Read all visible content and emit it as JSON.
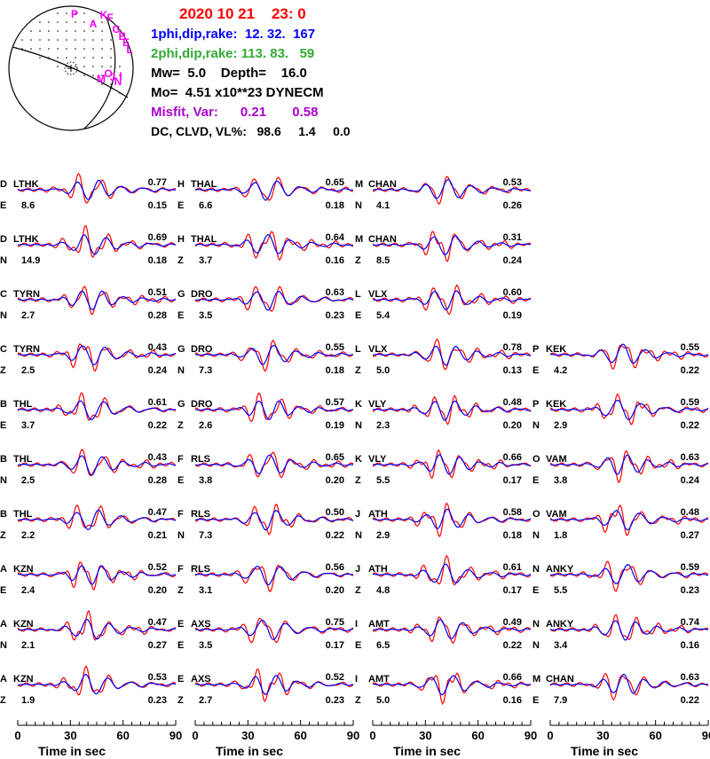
{
  "header": {
    "date": "2020 10 21    23: 0",
    "plane1": "1phi,dip,rake:  12. 32.  167",
    "plane2": "2phi,dip,rake: 113. 83.   59",
    "mw_depth": "Mw=  5.0    Depth=    16.0",
    "moment": "Mo=  4.51 x10**23 DYNECM",
    "misfit": "Misfit, Var:      0.21       0.58",
    "dc": "DC, CLVD, VL%:   98.6     1.4     0.0",
    "colors": {
      "date": "#ff0000",
      "plane1": "#0000ff",
      "plane2": "#33aa33",
      "misfit": "#aa00cc",
      "text": "#000000"
    }
  },
  "beachball": {
    "station_labels": [
      "P",
      "A",
      "K",
      "F",
      "G",
      "B",
      "E",
      "L",
      "J",
      "N",
      "O",
      "I",
      "M"
    ],
    "label_color": "#ff00ff"
  },
  "chart_data": {
    "type": "waveform_grid",
    "series_colors": {
      "observed": "#ff0000",
      "synthetic": "#0000ff"
    },
    "columns": [
      [
        {
          "letter": "D",
          "station": "LTHK",
          "comp": "E",
          "dist": "8.6",
          "cc": "0.77",
          "amp": "0.15"
        },
        {
          "letter": "D",
          "station": "LTHK",
          "comp": "N",
          "dist": "14.9",
          "cc": "0.69",
          "amp": "0.18"
        },
        {
          "letter": "C",
          "station": "TYRN",
          "comp": "N",
          "dist": "2.7",
          "cc": "0.51",
          "amp": "0.28"
        },
        {
          "letter": "C",
          "station": "TYRN",
          "comp": "Z",
          "dist": "2.5",
          "cc": "0.43",
          "amp": "0.24"
        },
        {
          "letter": "B",
          "station": "THL",
          "comp": "E",
          "dist": "3.7",
          "cc": "0.61",
          "amp": "0.22"
        },
        {
          "letter": "B",
          "station": "THL",
          "comp": "N",
          "dist": "2.5",
          "cc": "0.43",
          "amp": "0.28"
        },
        {
          "letter": "B",
          "station": "THL",
          "comp": "Z",
          "dist": "2.2",
          "cc": "0.47",
          "amp": "0.21"
        },
        {
          "letter": "A",
          "station": "KZN",
          "comp": "E",
          "dist": "2.4",
          "cc": "0.52",
          "amp": "0.20"
        },
        {
          "letter": "A",
          "station": "KZN",
          "comp": "N",
          "dist": "2.1",
          "cc": "0.47",
          "amp": "0.27"
        },
        {
          "letter": "A",
          "station": "KZN",
          "comp": "Z",
          "dist": "1.9",
          "cc": "0.53",
          "amp": "0.23"
        }
      ],
      [
        {
          "letter": "H",
          "station": "THAL",
          "comp": "E",
          "dist": "6.6",
          "cc": "0.65",
          "amp": "0.18"
        },
        {
          "letter": "H",
          "station": "THAL",
          "comp": "Z",
          "dist": "3.7",
          "cc": "0.64",
          "amp": "0.16"
        },
        {
          "letter": "G",
          "station": "DRO",
          "comp": "E",
          "dist": "3.5",
          "cc": "0.63",
          "amp": "0.23"
        },
        {
          "letter": "G",
          "station": "DRO",
          "comp": "N",
          "dist": "7.3",
          "cc": "0.55",
          "amp": "0.18"
        },
        {
          "letter": "G",
          "station": "DRO",
          "comp": "Z",
          "dist": "2.6",
          "cc": "0.57",
          "amp": "0.19"
        },
        {
          "letter": "F",
          "station": "RLS",
          "comp": "E",
          "dist": "3.8",
          "cc": "0.65",
          "amp": "0.20"
        },
        {
          "letter": "F",
          "station": "RLS",
          "comp": "N",
          "dist": "7.3",
          "cc": "0.50",
          "amp": "0.22"
        },
        {
          "letter": "F",
          "station": "RLS",
          "comp": "Z",
          "dist": "3.1",
          "cc": "0.56",
          "amp": "0.20"
        },
        {
          "letter": "E",
          "station": "AXS",
          "comp": "E",
          "dist": "3.5",
          "cc": "0.75",
          "amp": "0.17"
        },
        {
          "letter": "E",
          "station": "AXS",
          "comp": "Z",
          "dist": "2.7",
          "cc": "0.52",
          "amp": "0.23"
        }
      ],
      [
        {
          "letter": "M",
          "station": "CHAN",
          "comp": "N",
          "dist": "4.1",
          "cc": "0.53",
          "amp": "0.26"
        },
        {
          "letter": "M",
          "station": "CHAN",
          "comp": "Z",
          "dist": "8.5",
          "cc": "0.31",
          "amp": "0.24"
        },
        {
          "letter": "L",
          "station": "VLX",
          "comp": "E",
          "dist": "5.4",
          "cc": "0.60",
          "amp": "0.19"
        },
        {
          "letter": "L",
          "station": "VLX",
          "comp": "Z",
          "dist": "5.0",
          "cc": "0.78",
          "amp": "0.13"
        },
        {
          "letter": "K",
          "station": "VLY",
          "comp": "N",
          "dist": "2.3",
          "cc": "0.48",
          "amp": "0.20"
        },
        {
          "letter": "K",
          "station": "VLY",
          "comp": "Z",
          "dist": "5.5",
          "cc": "0.66",
          "amp": "0.17"
        },
        {
          "letter": "J",
          "station": "ATH",
          "comp": "N",
          "dist": "2.9",
          "cc": "0.58",
          "amp": "0.18"
        },
        {
          "letter": "J",
          "station": "ATH",
          "comp": "Z",
          "dist": "4.8",
          "cc": "0.61",
          "amp": "0.17"
        },
        {
          "letter": "I",
          "station": "AMT",
          "comp": "E",
          "dist": "6.5",
          "cc": "0.49",
          "amp": "0.22"
        },
        {
          "letter": "I",
          "station": "AMT",
          "comp": "Z",
          "dist": "5.0",
          "cc": "0.66",
          "amp": "0.16"
        }
      ],
      [
        null,
        null,
        null,
        {
          "letter": "P",
          "station": "KEK",
          "comp": "E",
          "dist": "4.2",
          "cc": "0.55",
          "amp": "0.22"
        },
        {
          "letter": "P",
          "station": "KEK",
          "comp": "N",
          "dist": "2.9",
          "cc": "0.59",
          "amp": "0.22"
        },
        {
          "letter": "O",
          "station": "VAM",
          "comp": "E",
          "dist": "3.8",
          "cc": "0.63",
          "amp": "0.24"
        },
        {
          "letter": "O",
          "station": "VAM",
          "comp": "N",
          "dist": "1.8",
          "cc": "0.48",
          "amp": "0.27"
        },
        {
          "letter": "N",
          "station": "ANKY",
          "comp": "E",
          "dist": "5.5",
          "cc": "0.59",
          "amp": "0.23"
        },
        {
          "letter": "N",
          "station": "ANKY",
          "comp": "N",
          "dist": "3.4",
          "cc": "0.74",
          "amp": "0.16"
        },
        {
          "letter": "M",
          "station": "CHAN",
          "comp": "E",
          "dist": "7.9",
          "cc": "0.63",
          "amp": "0.22"
        }
      ]
    ],
    "time_axis": {
      "xlabel": "Time  in sec",
      "ticks": [
        "0",
        "30",
        "60",
        "90"
      ],
      "range": [
        0,
        90
      ]
    }
  }
}
